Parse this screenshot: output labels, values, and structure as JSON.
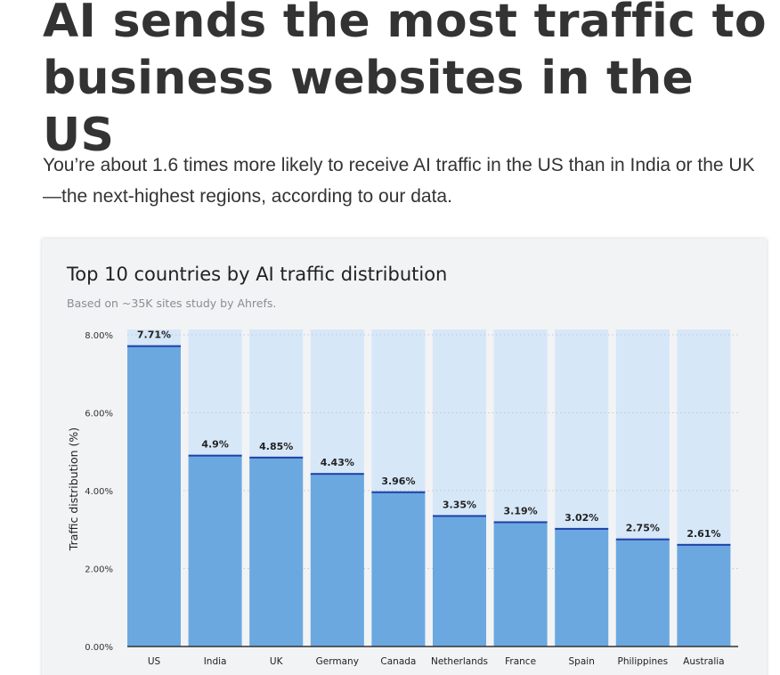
{
  "article": {
    "headline_line1": "AI sends the most traffic to",
    "headline_line2": "business websites in the US",
    "lede": "You’re about 1.6 times more likely to receive AI traffic in the US than in India or the UK—the next-highest regions, according to our data."
  },
  "colors": {
    "bar": "#6ba8e0",
    "bar_track": "#d6e7f8",
    "bar_cap": "#1f3fa8",
    "card_background": "#f2f3f5"
  },
  "chart_data": {
    "type": "bar",
    "title": "Top 10 countries by AI traffic distribution",
    "subtitle": "Based on ~35K sites study by Ahrefs.",
    "xlabel": "",
    "ylabel": "Traffic distribution (%)",
    "categories": [
      "US",
      "India",
      "UK",
      "Germany",
      "Canada",
      "Netherlands",
      "France",
      "Spain",
      "Philippines",
      "Australia"
    ],
    "values": [
      7.71,
      4.9,
      4.85,
      4.43,
      3.96,
      3.35,
      3.19,
      3.02,
      2.75,
      2.61
    ],
    "value_labels": [
      "7.71%",
      "4.9%",
      "4.85%",
      "4.43%",
      "3.96%",
      "3.35%",
      "3.19%",
      "3.02%",
      "2.75%",
      "2.61%"
    ],
    "ylim": [
      0,
      8
    ],
    "yticks": [
      0,
      2,
      4,
      6,
      8
    ],
    "ytick_labels": [
      "0.00%",
      "2.00%",
      "4.00%",
      "6.00%",
      "8.00%"
    ],
    "grid": true,
    "legend": "none"
  }
}
